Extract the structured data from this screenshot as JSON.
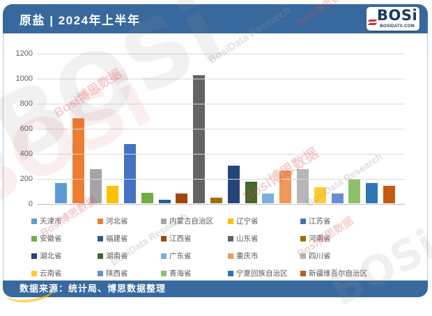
{
  "header": {
    "title": "原盐 | 2024年上半年"
  },
  "logo": {
    "text": "BOSi",
    "subtext": "BOSIDATA.COM"
  },
  "footer": {
    "source_text": "数据来源：统计局、博思数据整理"
  },
  "watermark": {
    "brand": "BOSi",
    "cn": "Bosi博思数据",
    "en": "BosiData Research"
  },
  "chart_data": {
    "type": "bar",
    "title": "原盐 | 2024年上半年",
    "categories": [
      "天津市",
      "河北省",
      "内蒙古自治区",
      "辽宁省",
      "江苏省",
      "安徽省",
      "福建省",
      "江西省",
      "山东省",
      "河南省",
      "湖北省",
      "湖南省",
      "广东省",
      "重庆市",
      "四川省",
      "云南省",
      "陕西省",
      "青海省",
      "宁夏回族自治区",
      "新疆维吾尔自治区"
    ],
    "values": [
      160,
      680,
      270,
      140,
      470,
      85,
      30,
      80,
      1025,
      45,
      300,
      170,
      78,
      260,
      272,
      130,
      80,
      197,
      163,
      137
    ],
    "colors": [
      "#5B9BD5",
      "#ED7D31",
      "#A5A5A5",
      "#FFC000",
      "#4472C4",
      "#70AD47",
      "#255E91",
      "#9E480E",
      "#636363",
      "#997300",
      "#264478",
      "#43682B",
      "#7CAFDD",
      "#F1975A",
      "#B7B7B7",
      "#FFCD33",
      "#698ED0",
      "#8CC168",
      "#2E75B6",
      "#C55A11"
    ],
    "xlabel": "",
    "ylabel": "",
    "ylim": [
      0,
      1200
    ],
    "yticks": [
      0,
      200,
      400,
      600,
      800,
      1000,
      1200
    ],
    "grid": true,
    "legend_position": "bottom",
    "legend_columns": 5
  }
}
